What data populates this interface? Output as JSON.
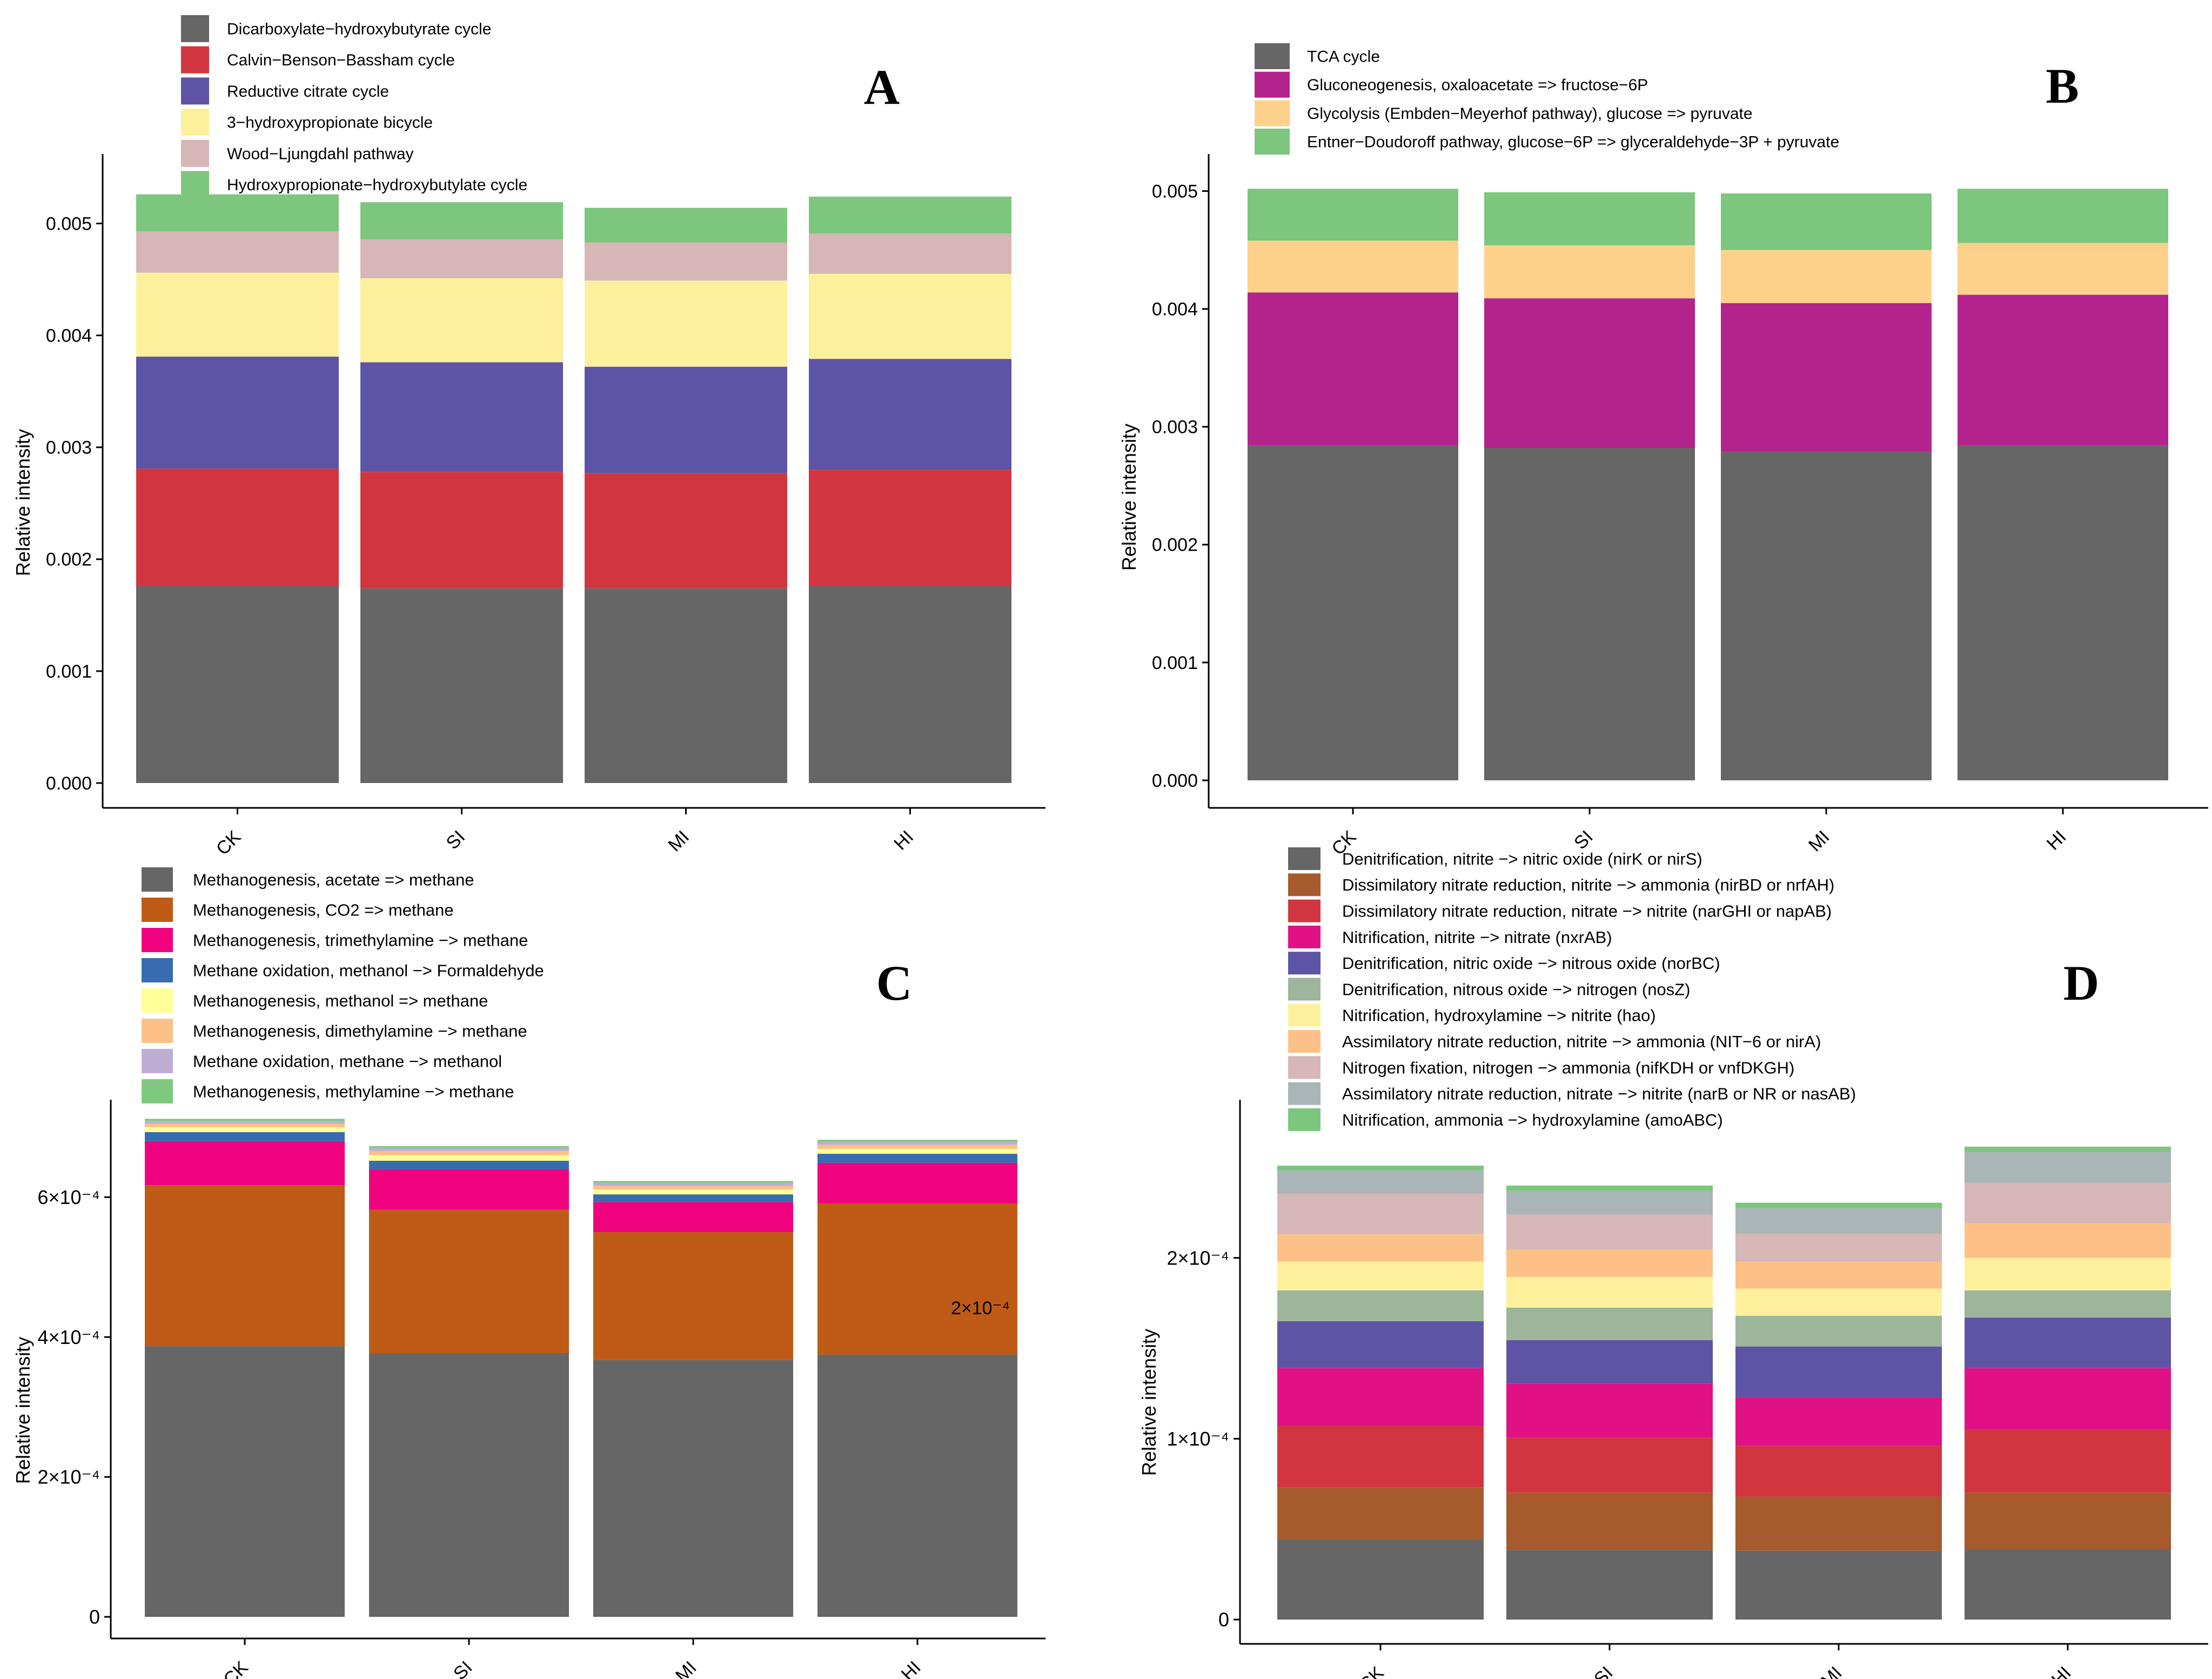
{
  "chart_data": [
    {
      "panel_label": "A",
      "type": "bar",
      "stacked": true,
      "categories": [
        "CK",
        "SI",
        "MI",
        "HI"
      ],
      "ylabel": "Relative intensity",
      "ylim": [
        0,
        0.0055
      ],
      "yticks": [
        "0.000",
        "0.001",
        "0.002",
        "0.003",
        "0.004",
        "0.005"
      ],
      "ytick_values": [
        0,
        0.001,
        0.002,
        0.003,
        0.004,
        0.005
      ],
      "series": [
        {
          "name": "Dicarboxylate−hydroxybutyrate cycle",
          "color": "#666666",
          "values": [
            0.00176,
            0.00174,
            0.00174,
            0.00176
          ]
        },
        {
          "name": "Calvin−Benson−Bassham cycle",
          "color": "#D13640",
          "values": [
            0.00105,
            0.00104,
            0.00103,
            0.00104
          ]
        },
        {
          "name": "Reductive citrate cycle",
          "color": "#5E54A5",
          "values": [
            0.001,
            0.00098,
            0.00095,
            0.00099
          ]
        },
        {
          "name": "3−hydroxypropionate bicycle",
          "color": "#FDF09C",
          "values": [
            0.00075,
            0.00075,
            0.00077,
            0.00076
          ]
        },
        {
          "name": "Wood−Ljungdahl pathway",
          "color": "#D6B6B6",
          "values": [
            0.00037,
            0.00035,
            0.00034,
            0.00036
          ]
        },
        {
          "name": "Hydroxypropionate−hydroxybutylate cycle",
          "color": "#7CC67D",
          "values": [
            0.00033,
            0.00033,
            0.00031,
            0.00033
          ]
        }
      ]
    },
    {
      "panel_label": "B",
      "type": "bar",
      "stacked": true,
      "categories": [
        "CK",
        "SI",
        "MI",
        "HI"
      ],
      "ylabel": "Relative intensity",
      "ylim": [
        0,
        0.0052
      ],
      "yticks": [
        "0.000",
        "0.001",
        "0.002",
        "0.003",
        "0.004",
        "0.005"
      ],
      "ytick_values": [
        0,
        0.001,
        0.002,
        0.003,
        0.004,
        0.005
      ],
      "series": [
        {
          "name": "TCA cycle",
          "color": "#666666",
          "values": [
            0.00284,
            0.00282,
            0.00279,
            0.00284
          ]
        },
        {
          "name": "Gluconeogenesis, oxaloacetate => fructose−6P",
          "color": "#B3238E",
          "values": [
            0.0013,
            0.00127,
            0.00126,
            0.00128
          ]
        },
        {
          "name": "Glycolysis (Embden−Meyerhof pathway), glucose => pyruvate",
          "color": "#FDD18A",
          "values": [
            0.00044,
            0.00045,
            0.00045,
            0.00044
          ]
        },
        {
          "name": "Entner−Doudoroff pathway, glucose−6P => glyceraldehyde−3P + pyruvate",
          "color": "#7CC67D",
          "values": [
            0.00044,
            0.00045,
            0.00048,
            0.00046
          ]
        }
      ]
    },
    {
      "panel_label": "C",
      "type": "bar",
      "stacked": true,
      "categories": [
        "CK",
        "SI",
        "MI",
        "HI"
      ],
      "ylabel": "Relative intensity",
      "ylim": [
        0,
        0.00072
      ],
      "yticks": [
        "0",
        "2×10⁻⁴",
        "4×10⁻⁴",
        "6×10⁻⁴"
      ],
      "ytick_values": [
        0,
        0.0002,
        0.0004,
        0.0006
      ],
      "annotations": [
        "2×10⁻⁴"
      ],
      "series": [
        {
          "name": "Methanogenesis, acetate => methane",
          "color": "#666666",
          "values": [
            0.000387,
            0.000377,
            0.000367,
            0.000375
          ]
        },
        {
          "name": "Methanogenesis, CO2 => methane",
          "color": "#BF5B17",
          "values": [
            0.00023,
            0.000205,
            0.000183,
            0.000216
          ]
        },
        {
          "name": "Methanogenesis, trimethylamine −> methane",
          "color": "#F0027F",
          "values": [
            6.3e-05,
            5.8e-05,
            4.3e-05,
            5.8e-05
          ]
        },
        {
          "name": "Methane oxidation, methanol −> Formaldehyde",
          "color": "#386CB0",
          "values": [
            1.3e-05,
            1.2e-05,
            1.1e-05,
            1.3e-05
          ]
        },
        {
          "name": "Methanogenesis, methanol => methane",
          "color": "#FFFF99",
          "values": [
            7e-06,
            8e-06,
            7e-06,
            7e-06
          ]
        },
        {
          "name": "Methanogenesis, dimethylamine −> methane",
          "color": "#FDC086",
          "values": [
            5e-06,
            6e-06,
            5e-06,
            6e-06
          ]
        },
        {
          "name": "Methane oxidation, methane −> methanol",
          "color": "#BEAED4",
          "values": [
            4e-06,
            4e-06,
            4e-06,
            4e-06
          ]
        },
        {
          "name": "Methanogenesis, methylamine −> methane",
          "color": "#7FC97F",
          "values": [
            3e-06,
            3e-06,
            3e-06,
            3e-06
          ]
        }
      ]
    },
    {
      "panel_label": "D",
      "type": "bar",
      "stacked": true,
      "categories": [
        "CK",
        "SI",
        "MI",
        "HI"
      ],
      "ylabel": "Relative intensity",
      "ylim": [
        0,
        0.00028
      ],
      "yticks": [
        "0",
        "1×10⁻⁴",
        "2×10⁻⁴"
      ],
      "ytick_values": [
        0,
        0.0001,
        0.0002
      ],
      "series": [
        {
          "name": "Denitrification, nitrite −> nitric oxide (nirK or nirS)",
          "color": "#666666",
          "values": [
            4.45e-05,
            3.85e-05,
            3.8e-05,
            3.9e-05
          ]
        },
        {
          "name": "Dissimilatory nitrate reduction, nitrite −> ammonia (nirBD or nrfAH)",
          "color": "#A65A2D",
          "values": [
            2.85e-05,
            3.15e-05,
            3e-05,
            3.1e-05
          ]
        },
        {
          "name": "Dissimilatory nitrate reduction, nitrate −> nitrite (narGHI or napAB)",
          "color": "#D13640",
          "values": [
            3.4e-05,
            3.05e-05,
            2.8e-05,
            3.5e-05
          ]
        },
        {
          "name": "Nitrification, nitrite −> nitrate (nxrAB)",
          "color": "#E01185",
          "values": [
            3.2e-05,
            3e-05,
            2.7e-05,
            3.4e-05
          ]
        },
        {
          "name": "Denitrification, nitric oxide −> nitrous oxide (norBC)",
          "color": "#5E54A5",
          "values": [
            2.6e-05,
            2.4e-05,
            2.8e-05,
            2.8e-05
          ]
        },
        {
          "name": "Denitrification, nitrous oxide −> nitrogen (nosZ)",
          "color": "#9DB59B",
          "values": [
            1.7e-05,
            1.8e-05,
            1.7e-05,
            1.5e-05
          ]
        },
        {
          "name": "Nitrification, hydroxylamine −> nitrite (hao)",
          "color": "#FDF09C",
          "values": [
            1.6e-05,
            1.7e-05,
            1.5e-05,
            1.8e-05
          ]
        },
        {
          "name": "Assimilatory nitrate reduction, nitrite −> ammonia (NIT−6 or nirA)",
          "color": "#FDC086",
          "values": [
            1.5e-05,
            1.5e-05,
            1.5e-05,
            1.9e-05
          ]
        },
        {
          "name": "Nitrogen fixation, nitrogen −> ammonia (nifKDH or vnfDKGH)",
          "color": "#D6B6B6",
          "values": [
            2.25e-05,
            1.95e-05,
            1.55e-05,
            2.25e-05
          ]
        },
        {
          "name": "Assimilatory nitrate reduction, nitrate −> nitrite (narB or NR or nasAB)",
          "color": "#A9B5B6",
          "values": [
            1.3e-05,
            1.3e-05,
            1.4e-05,
            1.7e-05
          ]
        },
        {
          "name": "Nitrification, ammonia −> hydroxylamine (amoABC)",
          "color": "#7CC67D",
          "values": [
            2.5e-06,
            3e-06,
            3e-06,
            3e-06
          ]
        }
      ]
    }
  ]
}
